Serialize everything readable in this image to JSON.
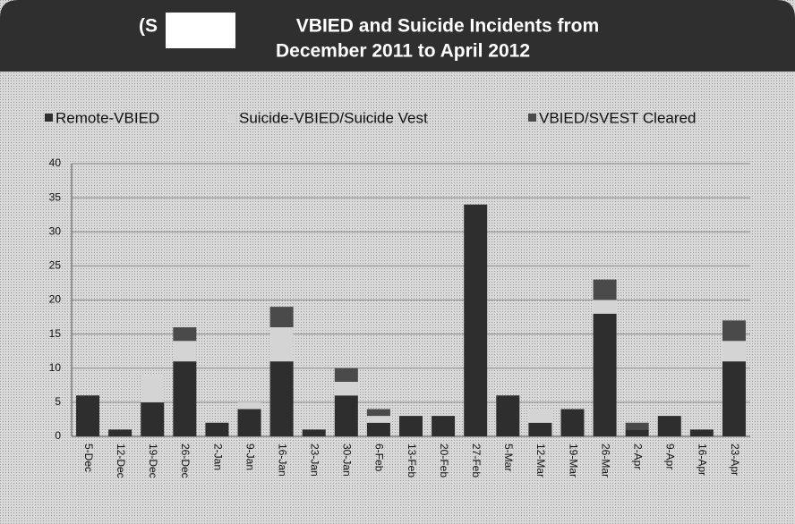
{
  "chart_data": {
    "type": "stacked_bar",
    "title_prefix": "(S",
    "title_lines": [
      "VBIED and Suicide Incidents from",
      "December 2011 to April 2012"
    ],
    "categories": [
      "5-Dec",
      "12-Dec",
      "19-Dec",
      "26-Dec",
      "2-Jan",
      "9-Jan",
      "16-Jan",
      "23-Jan",
      "30-Jan",
      "6-Feb",
      "13-Feb",
      "20-Feb",
      "27-Feb",
      "5-Mar",
      "12-Mar",
      "19-Mar",
      "26-Mar",
      "2-Apr",
      "9-Apr",
      "16-Apr",
      "23-Apr"
    ],
    "series": [
      {
        "name": "Remote-VBIED",
        "color": "#2e2e2e",
        "values": [
          6,
          1,
          5,
          11,
          2,
          4,
          11,
          1,
          6,
          2,
          3,
          3,
          34,
          6,
          2,
          4,
          18,
          1,
          3,
          1,
          11
        ]
      },
      {
        "name": "Suicide-VBIED/Suicide Vest",
        "color": "#d4d4d4",
        "values": [
          0,
          0,
          4,
          3,
          0,
          1,
          5,
          0,
          2,
          1,
          0,
          0,
          0,
          0,
          2,
          0,
          2,
          0,
          0,
          0,
          3
        ]
      },
      {
        "name": "VBIED/SVEST Cleared",
        "color": "#4a4a4a",
        "values": [
          0,
          0,
          0,
          2,
          0,
          0,
          3,
          0,
          2,
          1,
          0,
          0,
          0,
          0,
          0,
          0,
          3,
          1,
          0,
          0,
          3
        ]
      }
    ],
    "ylim": [
      0,
      40
    ],
    "yticks": [
      0,
      5,
      10,
      15,
      20,
      25,
      30,
      35,
      40
    ],
    "grid": true
  }
}
